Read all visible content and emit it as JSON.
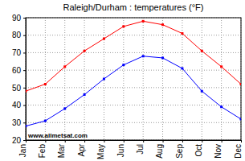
{
  "chart_data": {
    "type": "line",
    "title": "Raleigh/Durham : temperatures (°F)",
    "categories": [
      "Jan",
      "Feb",
      "Mar",
      "Apr",
      "May",
      "Jun",
      "Jul",
      "Aug",
      "Sep",
      "Oct",
      "Nov",
      "Dec"
    ],
    "series": [
      {
        "color": "#ff0000",
        "values": [
          48,
          52,
          62,
          71,
          78,
          85,
          88,
          86,
          81,
          71,
          62,
          52
        ]
      },
      {
        "color": "#0000ff",
        "values": [
          28,
          31,
          38,
          46,
          55,
          63,
          68,
          67,
          61,
          48,
          39,
          32
        ]
      }
    ],
    "ylim": [
      20,
      90
    ],
    "yticks": [
      20,
      30,
      40,
      50,
      60,
      70,
      80,
      90
    ],
    "grid": true,
    "marker": "square",
    "annotations": [
      "www.allmetsat.com"
    ]
  }
}
